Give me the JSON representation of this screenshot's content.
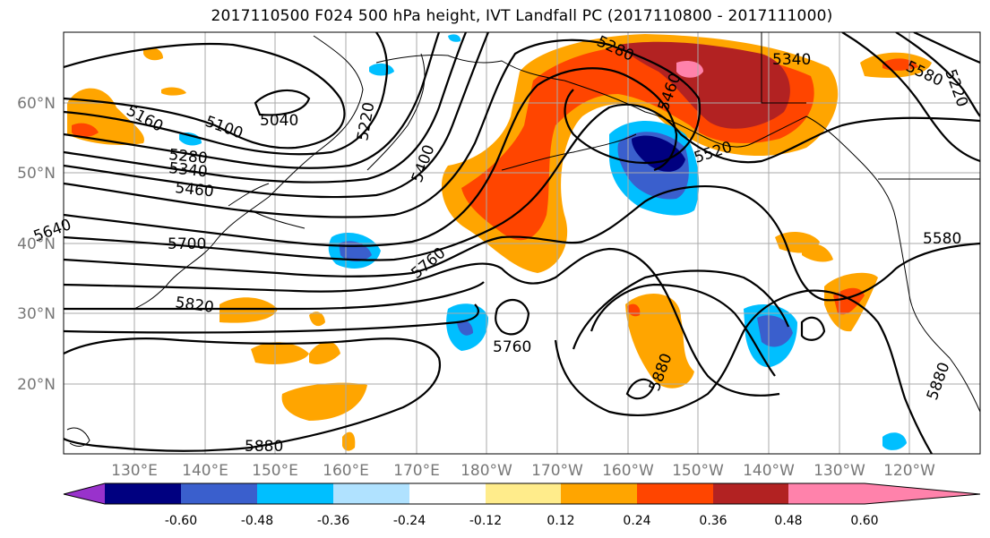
{
  "title": "2017110500 F024 500 hPa height, IVT Landfall PC (2017110800 - 2017111000)",
  "lat_labels": [
    "60°N",
    "50°N",
    "40°N",
    "30°N",
    "20°N"
  ],
  "lon_labels": [
    "130°E",
    "140°E",
    "150°E",
    "160°E",
    "170°E",
    "180°W",
    "170°W",
    "160°W",
    "150°W",
    "140°W",
    "130°W",
    "120°W"
  ],
  "contour_labels": [
    "5160",
    "5100",
    "5040",
    "5220",
    "5280",
    "5340",
    "5460",
    "5400",
    "5700",
    "5640",
    "5820",
    "5760",
    "5760",
    "5880",
    "5880",
    "5880",
    "5340",
    "5520",
    "5580",
    "5580",
    "5460",
    "5280",
    "5220"
  ],
  "colorbar": {
    "ticks": [
      "-0.60",
      "-0.48",
      "-0.36",
      "-0.24",
      "-0.12",
      "0.12",
      "0.24",
      "0.36",
      "0.48",
      "0.60"
    ],
    "colors": [
      "#9932cc",
      "#000080",
      "#3a5fcd",
      "#00bfff",
      "#b0e2ff",
      "#ffffff",
      "#ffec8b",
      "#ffa500",
      "#ff4500",
      "#b22222",
      "#ff82ab"
    ]
  }
}
